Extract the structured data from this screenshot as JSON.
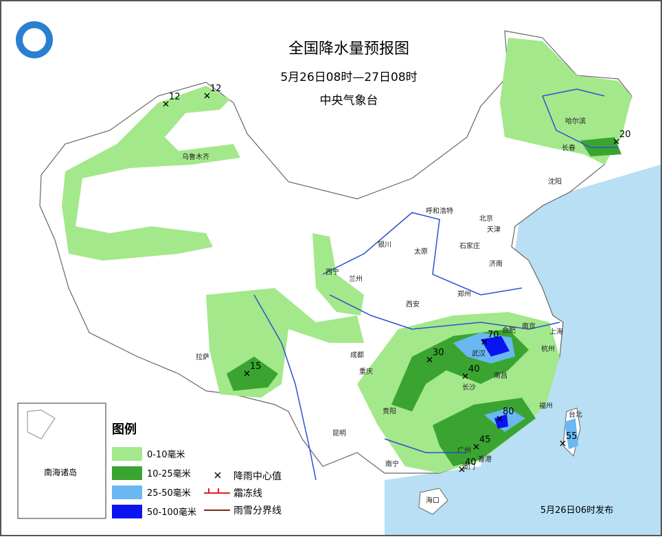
{
  "title": "全国降水量预报图",
  "subtitle": "5月26日08时—27日08时",
  "issuer": "中央气象台",
  "cities": [
    "乌鲁木齐",
    "哈尔滨",
    "长春",
    "沈阳",
    "呼和浩特",
    "北京",
    "天津",
    "石家庄",
    "太原",
    "济南",
    "银川",
    "西宁",
    "兰州",
    "郑州",
    "西安",
    "南京",
    "合肥",
    "上海",
    "杭州",
    "成都",
    "武汉",
    "拉萨",
    "重庆",
    "长沙",
    "南昌",
    "贵阳",
    "福州",
    "台北",
    "昆明",
    "广州",
    "南宁",
    "香港",
    "澳门",
    "海口"
  ],
  "rain_centers": [
    12,
    12,
    20,
    15,
    70,
    30,
    40,
    80,
    45,
    55,
    40
  ],
  "legend": {
    "title": "图例",
    "items": [
      {
        "label": "0-10毫米",
        "color": "#a3e88b"
      },
      {
        "label": "10-25毫米",
        "color": "#3aa431"
      },
      {
        "label": "25-50毫米",
        "color": "#6ab7f2"
      },
      {
        "label": "50-100毫米",
        "color": "#0a14f0"
      }
    ],
    "symbols": [
      {
        "label": "降雨中心值",
        "color": "#000000"
      },
      {
        "label": "霜冻线",
        "color": "#e02020"
      },
      {
        "label": "雨雪分界线",
        "color": "#7a2a10"
      }
    ]
  },
  "inset": "南海诸岛",
  "published": "5月26日06时发布"
}
